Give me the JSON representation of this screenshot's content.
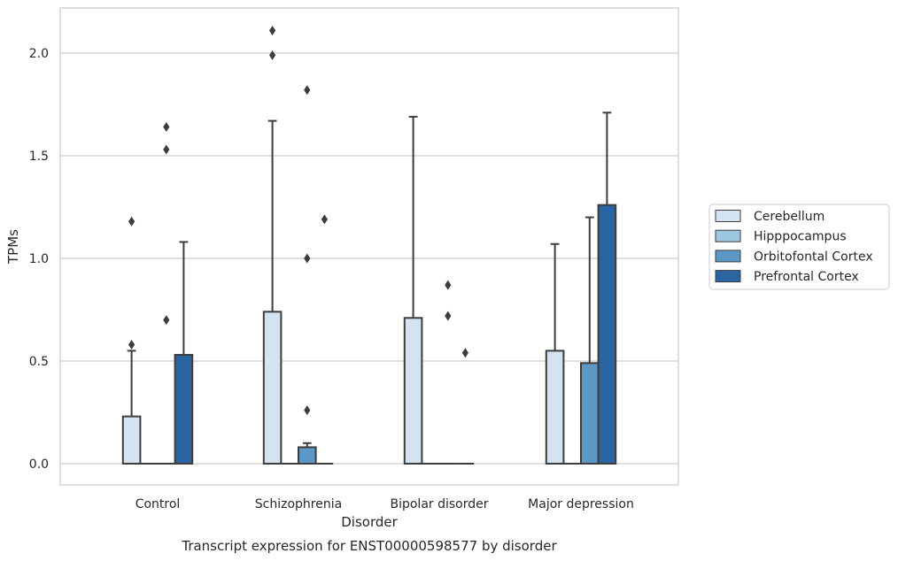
{
  "chart_data": {
    "type": "box",
    "caption": "Transcript expression for ENST00000598577 by disorder",
    "xlabel": "Disorder",
    "ylabel": "TPMs",
    "ylim": [
      -0.1,
      2.22
    ],
    "yticks": [
      0.0,
      0.5,
      1.0,
      1.5,
      2.0
    ],
    "ytick_labels": [
      "0.0",
      "0.5",
      "1.0",
      "1.5",
      "2.0"
    ],
    "grid": "horizontal",
    "legend_position": "right",
    "categories": [
      "Control",
      "Schizophrenia",
      "Bipolar disorder",
      "Major depression"
    ],
    "series": [
      {
        "name": "Cerebellum",
        "color": "#d3e3f2"
      },
      {
        "name": "Hipppocampus",
        "color": "#9dc6e0"
      },
      {
        "name": "Orbitofontal Cortex",
        "color": "#5b98c6"
      },
      {
        "name": "Prefrontal Cortex",
        "color": "#2a65a1"
      }
    ],
    "boxes": [
      [
        {
          "q1": 0,
          "median": 0,
          "q3": 0.23,
          "whisker_high": 0.55,
          "outliers": [
            0.58,
            1.18
          ]
        },
        {
          "q1": 0,
          "median": 0,
          "q3": 0,
          "whisker_high": 0,
          "outliers": []
        },
        {
          "q1": 0,
          "median": 0,
          "q3": 0,
          "whisker_high": 0,
          "outliers": [
            0.7,
            1.53,
            1.64
          ]
        },
        {
          "q1": 0,
          "median": 0,
          "q3": 0.53,
          "whisker_high": 1.08,
          "outliers": []
        }
      ],
      [
        {
          "q1": 0,
          "median": 0,
          "q3": 0.74,
          "whisker_high": 1.67,
          "outliers": [
            1.99,
            2.11
          ]
        },
        {
          "q1": 0,
          "median": 0,
          "q3": 0,
          "whisker_high": 0,
          "outliers": []
        },
        {
          "q1": 0,
          "median": 0,
          "q3": 0.08,
          "whisker_high": 0.1,
          "outliers": [
            0.26,
            1.0,
            1.82
          ]
        },
        {
          "q1": 0,
          "median": 0,
          "q3": 0,
          "whisker_high": 0,
          "outliers": [
            1.19
          ]
        }
      ],
      [
        {
          "q1": 0,
          "median": 0,
          "q3": 0.71,
          "whisker_high": 1.69,
          "outliers": []
        },
        {
          "q1": 0,
          "median": 0,
          "q3": 0,
          "whisker_high": 0,
          "outliers": []
        },
        {
          "q1": 0,
          "median": 0,
          "q3": 0,
          "whisker_high": 0,
          "outliers": [
            0.72,
            0.87
          ]
        },
        {
          "q1": 0,
          "median": 0,
          "q3": 0,
          "whisker_high": 0,
          "outliers": [
            0.54
          ]
        }
      ],
      [
        {
          "q1": 0,
          "median": 0,
          "q3": 0.55,
          "whisker_high": 1.07,
          "outliers": []
        },
        {
          "q1": 0,
          "median": 0,
          "q3": 0,
          "whisker_high": 0,
          "outliers": []
        },
        {
          "q1": 0,
          "median": 0,
          "q3": 0.49,
          "whisker_high": 1.2,
          "outliers": []
        },
        {
          "q1": 0,
          "median": 0,
          "q3": 1.26,
          "whisker_high": 1.71,
          "outliers": []
        }
      ]
    ]
  }
}
